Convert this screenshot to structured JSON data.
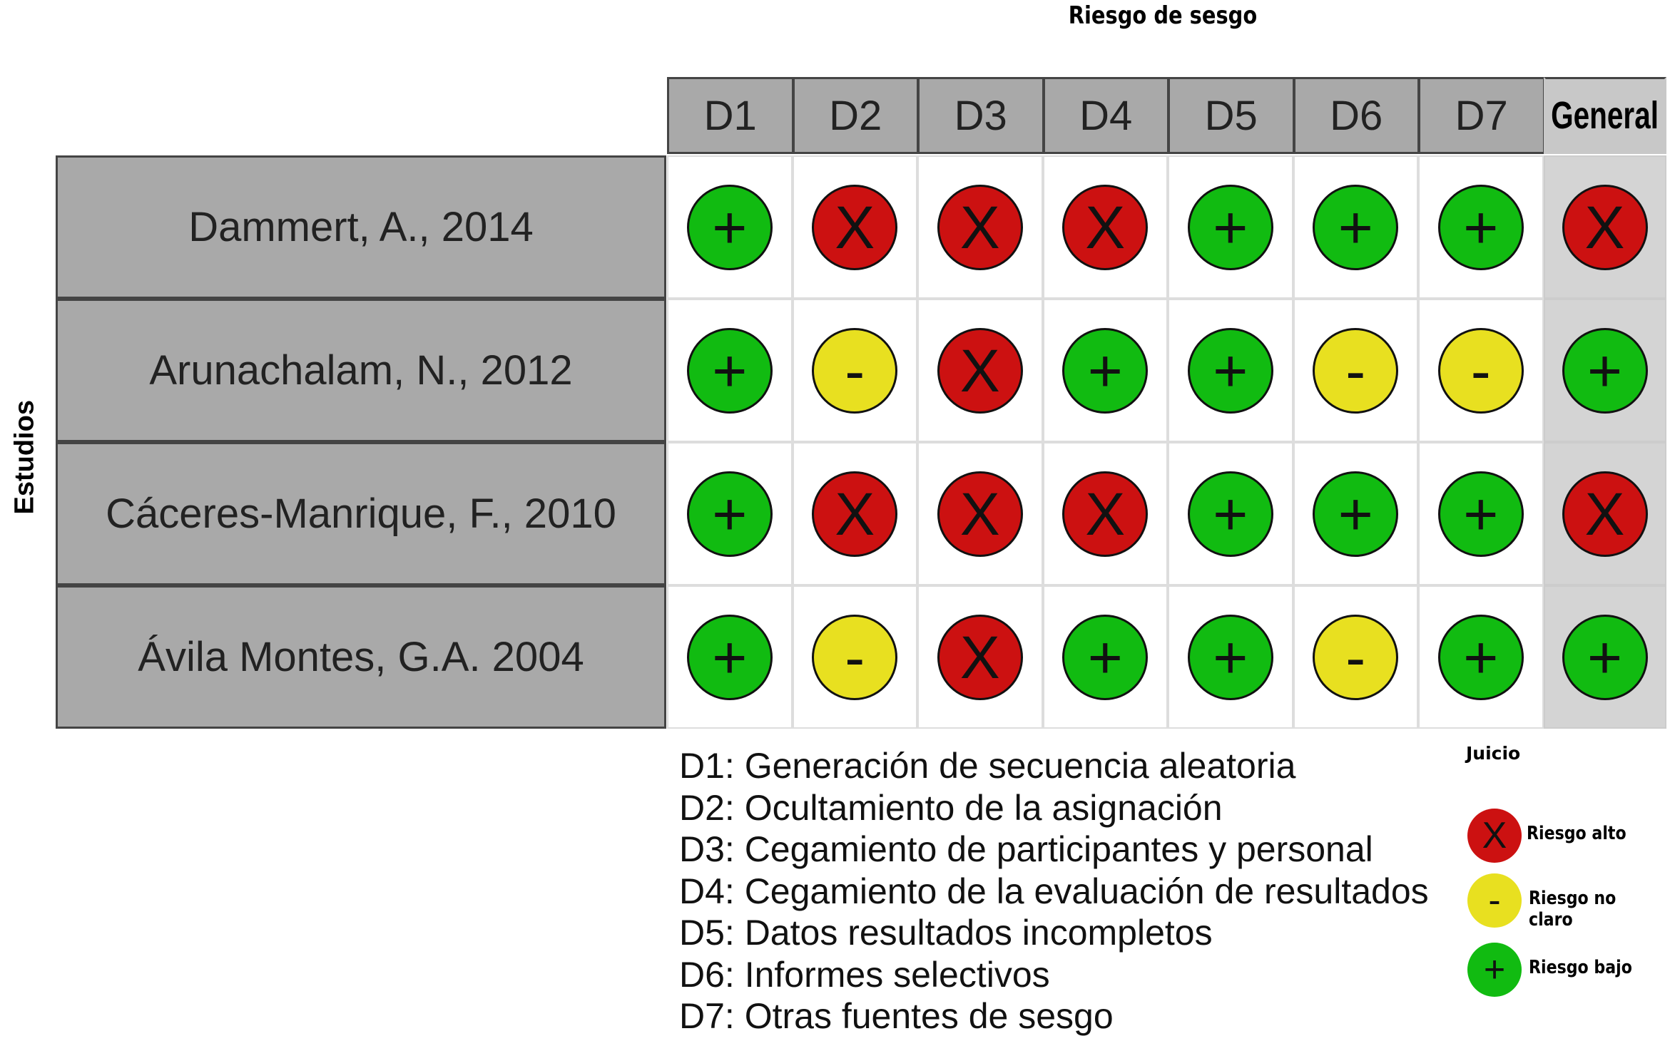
{
  "title": "Riesgo de sesgo",
  "y_label": "Estudios",
  "columns": [
    "D1",
    "D2",
    "D3",
    "D4",
    "D5",
    "D6",
    "D7",
    "General"
  ],
  "symbols": {
    "high": "X",
    "unclear": "-",
    "low": "+"
  },
  "colors": {
    "high": "#cc1111",
    "unclear": "#e8e020",
    "low": "#11bb11"
  },
  "studies": [
    {
      "name": "Dammert, A., 2014",
      "judgements": [
        "low",
        "high",
        "high",
        "high",
        "low",
        "low",
        "low",
        "high"
      ]
    },
    {
      "name": "Arunachalam, N., 2012",
      "judgements": [
        "low",
        "unclear",
        "high",
        "low",
        "low",
        "unclear",
        "unclear",
        "low"
      ]
    },
    {
      "name": "Cáceres-Manrique, F., 2010",
      "judgements": [
        "low",
        "high",
        "high",
        "high",
        "low",
        "low",
        "low",
        "high"
      ]
    },
    {
      "name": "Ávila Montes, G.A. 2004",
      "judgements": [
        "low",
        "unclear",
        "high",
        "low",
        "low",
        "unclear",
        "low",
        "low"
      ]
    }
  ],
  "domains": [
    "D1: Generación de secuencia aleatoria",
    "D2: Ocultamiento de la asignación",
    "D3: Cegamiento de participantes y personal",
    "D4: Cegamiento de la evaluación de resultados",
    "D5: Datos  resultados incompletos",
    "D6: Informes selectivos",
    "D7: Otras fuentes de sesgo"
  ],
  "key": {
    "title": "Juicio",
    "items": [
      {
        "level": "high",
        "label": "Riesgo alto"
      },
      {
        "level": "unclear",
        "label": "Riesgo no claro"
      },
      {
        "level": "low",
        "label": "Riesgo bajo"
      }
    ]
  }
}
